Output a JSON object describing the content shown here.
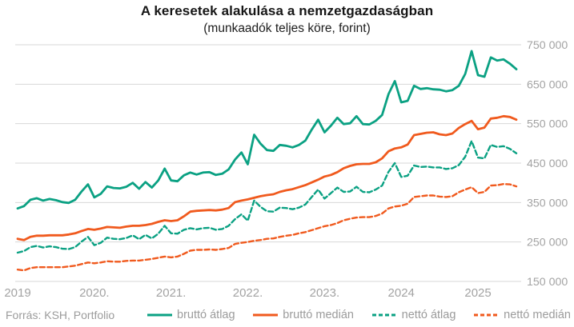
{
  "title": "A keresetek alakulása a nemzetgazdaságban",
  "subtitle": "(munkaadók teljes köre, forint)",
  "source": "Forrás: KSH, Portfolio",
  "colors": {
    "teal": "#0ba183",
    "orange": "#f05a1e",
    "grid": "#d7d7d7",
    "axis_text": "#a3a3a3",
    "title_text": "#161616",
    "legend_text": "#9b9b9b"
  },
  "chart_data": {
    "type": "line",
    "title": "A keresetek alakulása a nemzetgazdaságban",
    "subtitle": "(munkaadók teljes köre, forint)",
    "unit": "forint",
    "x_range": [
      "2019-01",
      "2025-07"
    ],
    "points_per_series": 79,
    "ylim": [
      150000,
      750000
    ],
    "grid": true,
    "legend_position": "bottom",
    "y_ticks": [
      {
        "value": 750000,
        "label": "750 000"
      },
      {
        "value": 650000,
        "label": "650 000"
      },
      {
        "value": 550000,
        "label": "550 000"
      },
      {
        "value": 450000,
        "label": "450 000"
      },
      {
        "value": 350000,
        "label": "350 000"
      },
      {
        "value": 250000,
        "label": "250 000"
      },
      {
        "value": 150000,
        "label": "150 000"
      }
    ],
    "x_ticks": [
      {
        "month_index": 0,
        "label": "2019"
      },
      {
        "month_index": 12,
        "label": "2020."
      },
      {
        "month_index": 24,
        "label": "2021."
      },
      {
        "month_index": 36,
        "label": "2022."
      },
      {
        "month_index": 48,
        "label": "2023."
      },
      {
        "month_index": 60,
        "label": "2024"
      },
      {
        "month_index": 72,
        "label": "2025"
      }
    ],
    "series": [
      {
        "name": "bruttó átlag",
        "slug": "brutto-atlag",
        "color": "#0ba183",
        "style": "solid",
        "values": [
          335000,
          341000,
          357000,
          361000,
          355000,
          359000,
          356000,
          351000,
          349000,
          357000,
          378000,
          396000,
          363000,
          372000,
          391000,
          387000,
          386000,
          390000,
          400000,
          385000,
          402000,
          388000,
          406000,
          436000,
          406000,
          404000,
          419000,
          426000,
          421000,
          426000,
          427000,
          420000,
          423000,
          434000,
          459000,
          477000,
          447000,
          522000,
          499000,
          483000,
          481000,
          496000,
          494000,
          490000,
          496000,
          507000,
          535000,
          560000,
          528000,
          545000,
          565000,
          549000,
          551000,
          569000,
          549000,
          548000,
          557000,
          572000,
          625000,
          658000,
          604000,
          608000,
          646000,
          638000,
          640000,
          637000,
          636000,
          632000,
          635000,
          646000,
          676000,
          734000,
          673000,
          669000,
          718000,
          710000,
          713000,
          702000,
          688000
        ]
      },
      {
        "name": "bruttó medián",
        "slug": "brutto-median",
        "color": "#f05a1e",
        "style": "solid",
        "values": [
          258000,
          255000,
          263000,
          266000,
          266000,
          267000,
          267000,
          267000,
          269000,
          272000,
          278000,
          283000,
          281000,
          284000,
          288000,
          287000,
          286000,
          289000,
          291000,
          291000,
          293000,
          296000,
          301000,
          305000,
          303000,
          305000,
          315000,
          327000,
          329000,
          330000,
          331000,
          330000,
          332000,
          336000,
          351000,
          355000,
          358000,
          362000,
          366000,
          369000,
          371000,
          377000,
          381000,
          384000,
          389000,
          394000,
          401000,
          408000,
          416000,
          420000,
          427000,
          437000,
          443000,
          447000,
          448000,
          448000,
          452000,
          462000,
          480000,
          487000,
          490000,
          497000,
          521000,
          524000,
          527000,
          528000,
          523000,
          521000,
          525000,
          539000,
          549000,
          557000,
          536000,
          540000,
          563000,
          565000,
          569000,
          567000,
          560000
        ]
      },
      {
        "name": "nettó átlag",
        "slug": "netto-atlag",
        "color": "#0ba183",
        "style": "dashed",
        "values": [
          223000,
          227000,
          237000,
          240000,
          236000,
          239000,
          237000,
          233000,
          232000,
          237000,
          251000,
          263000,
          242000,
          248000,
          261000,
          258000,
          257000,
          260000,
          267000,
          257000,
          268000,
          259000,
          271000,
          291000,
          272000,
          271000,
          281000,
          285000,
          282000,
          285000,
          286000,
          281000,
          283000,
          291000,
          308000,
          320000,
          304000,
          355000,
          339000,
          328000,
          327000,
          337000,
          336000,
          333000,
          337000,
          345000,
          364000,
          383000,
          360000,
          374000,
          388000,
          377000,
          378000,
          390000,
          377000,
          376000,
          383000,
          393000,
          428000,
          450000,
          415000,
          418000,
          444000,
          440000,
          441000,
          439000,
          439000,
          435000,
          437000,
          445000,
          466000,
          506000,
          464000,
          462000,
          496000,
          491000,
          493000,
          486000,
          475000
        ]
      },
      {
        "name": "nettó medián",
        "slug": "netto-median",
        "color": "#f05a1e",
        "style": "dashed",
        "values": [
          180000,
          178000,
          184000,
          186000,
          186000,
          186000,
          186000,
          186000,
          188000,
          190000,
          194000,
          198000,
          196000,
          198000,
          201000,
          200000,
          200000,
          202000,
          203000,
          203000,
          205000,
          207000,
          210000,
          213000,
          211000,
          213000,
          220000,
          228000,
          230000,
          230000,
          231000,
          230000,
          232000,
          235000,
          245000,
          248000,
          250000,
          253000,
          255000,
          258000,
          259000,
          263000,
          266000,
          268000,
          272000,
          275000,
          280000,
          285000,
          290000,
          293000,
          298000,
          305000,
          309000,
          312000,
          313000,
          313000,
          316000,
          322000,
          335000,
          340000,
          342000,
          347000,
          364000,
          366000,
          368000,
          368000,
          365000,
          364000,
          366000,
          376000,
          383000,
          389000,
          374000,
          377000,
          393000,
          394000,
          397000,
          396000,
          391000
        ]
      }
    ]
  },
  "legend": {
    "items": [
      "bruttó átlag",
      "bruttó medián",
      "nettó átlag",
      "nettó medián"
    ]
  }
}
